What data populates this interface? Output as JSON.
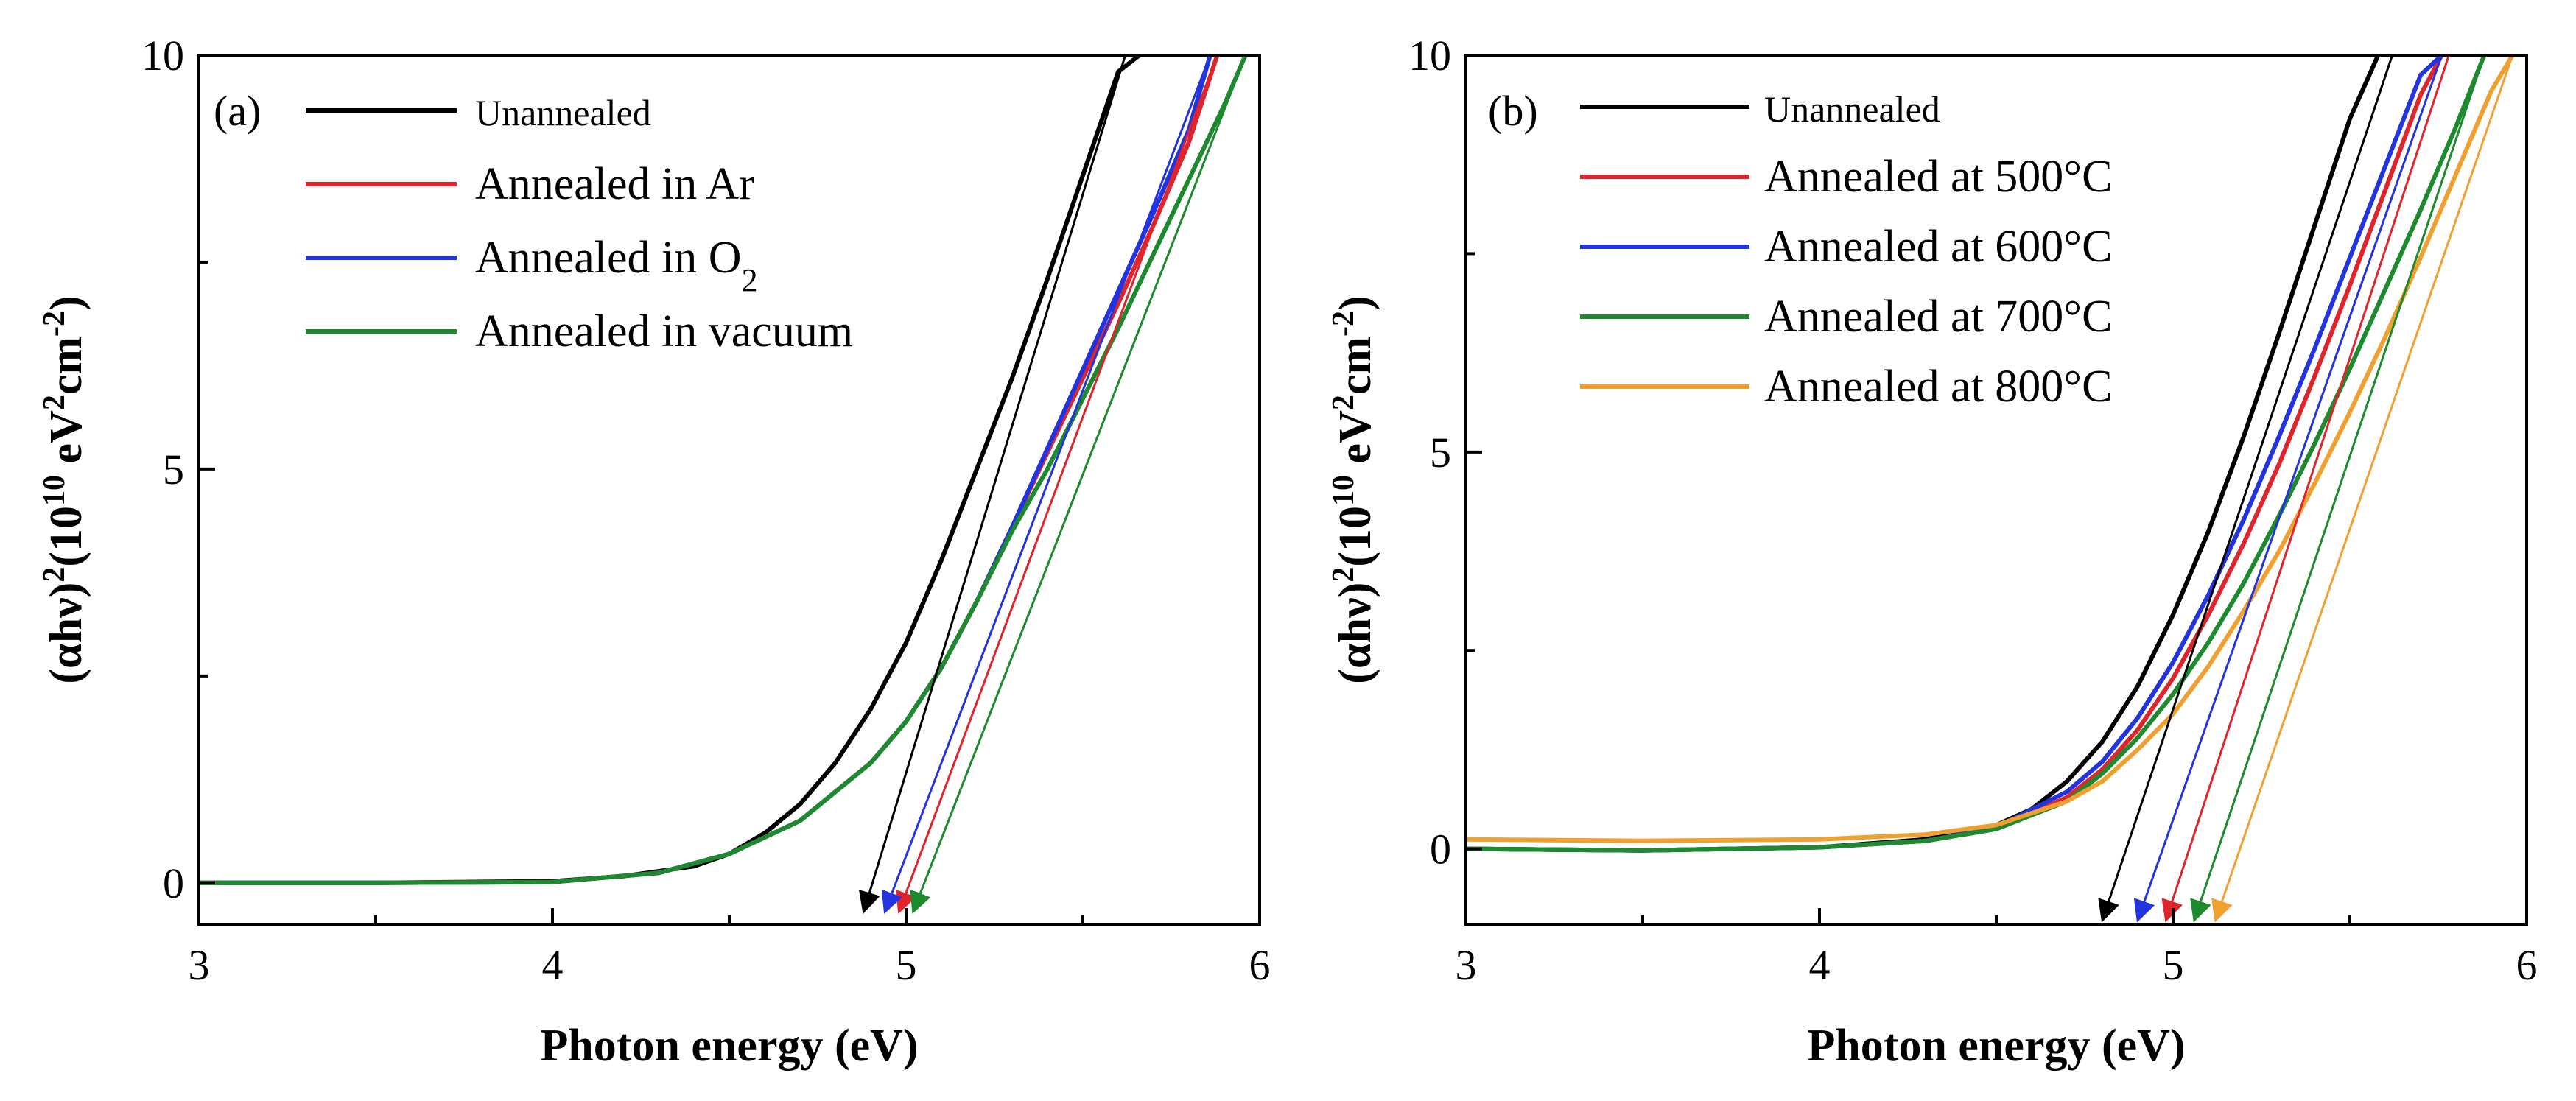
{
  "chart_data": [
    {
      "type": "line",
      "panel_label": "(a)",
      "xlabel": "Photon energy (eV)",
      "ylabel_parts": [
        "(αhν)",
        "2",
        "(10",
        "10",
        " eV",
        "2",
        "cm",
        "-2",
        ")"
      ],
      "xlim": [
        3,
        6
      ],
      "ylim": [
        -0.5,
        10
      ],
      "xticks": [
        3,
        4,
        5,
        6
      ],
      "yticks": [
        0,
        5,
        10
      ],
      "legend_position": "top-left",
      "series": [
        {
          "name": "Unannealed",
          "color": "#000000",
          "x": [
            3.0,
            3.5,
            4.0,
            4.2,
            4.4,
            4.5,
            4.6,
            4.7,
            4.8,
            4.9,
            5.0,
            5.1,
            5.2,
            5.3,
            5.4,
            5.5,
            5.6,
            5.66
          ],
          "y": [
            0.0,
            0.0,
            0.02,
            0.08,
            0.2,
            0.35,
            0.6,
            0.95,
            1.45,
            2.1,
            2.9,
            3.9,
            5.0,
            6.1,
            7.3,
            8.55,
            9.8,
            10.0
          ],
          "tangent": [
            [
              4.88,
              -0.35
            ],
            [
              5.62,
              10.0
            ]
          ],
          "arrow_x": 4.88
        },
        {
          "name": "Annealed in Ar",
          "color": "#e0242b",
          "x": [
            3.0,
            3.5,
            4.0,
            4.3,
            4.5,
            4.7,
            4.9,
            5.0,
            5.1,
            5.2,
            5.3,
            5.4,
            5.5,
            5.6,
            5.7,
            5.8,
            5.88
          ],
          "y": [
            0.0,
            0.0,
            0.01,
            0.12,
            0.35,
            0.75,
            1.45,
            1.95,
            2.6,
            3.4,
            4.3,
            5.2,
            6.1,
            7.0,
            7.95,
            8.95,
            10.0
          ],
          "tangent": [
            [
              4.98,
              -0.35
            ],
            [
              5.88,
              10.0
            ]
          ],
          "arrow_x": 4.98
        },
        {
          "name": "Annealed in O",
          "name_subscript": "2",
          "color": "#2233e0",
          "x": [
            3.0,
            3.5,
            4.0,
            4.3,
            4.5,
            4.7,
            4.9,
            5.0,
            5.1,
            5.2,
            5.3,
            5.4,
            5.5,
            5.6,
            5.7,
            5.8,
            5.86
          ],
          "y": [
            0.0,
            0.0,
            0.01,
            0.12,
            0.35,
            0.75,
            1.45,
            1.95,
            2.6,
            3.4,
            4.3,
            5.25,
            6.2,
            7.15,
            8.1,
            9.1,
            10.0
          ],
          "tangent": [
            [
              4.94,
              -0.35
            ],
            [
              5.86,
              10.0
            ]
          ],
          "arrow_x": 4.94
        },
        {
          "name": "Annealed in vacuum",
          "color": "#1d8a2e",
          "x": [
            3.0,
            3.5,
            4.0,
            4.3,
            4.5,
            4.7,
            4.9,
            5.0,
            5.1,
            5.2,
            5.3,
            5.4,
            5.5,
            5.6,
            5.7,
            5.8,
            5.9,
            5.96
          ],
          "y": [
            0.0,
            0.0,
            0.01,
            0.12,
            0.35,
            0.75,
            1.45,
            1.95,
            2.6,
            3.4,
            4.25,
            5.0,
            5.85,
            6.7,
            7.6,
            8.5,
            9.4,
            10.0
          ],
          "tangent": [
            [
              5.02,
              -0.35
            ],
            [
              5.96,
              10.0
            ]
          ],
          "arrow_x": 5.02
        }
      ]
    },
    {
      "type": "line",
      "panel_label": "(b)",
      "xlabel": "Photon energy (eV)",
      "ylabel_parts": [
        "(αhν)",
        "2",
        "(10",
        "10",
        " eV",
        "2",
        "cm",
        "-2",
        ")"
      ],
      "xlim": [
        3,
        6
      ],
      "ylim": [
        -0.95,
        10
      ],
      "xticks": [
        3,
        4,
        5,
        6
      ],
      "yticks": [
        0,
        5,
        10
      ],
      "legend_position": "top-left",
      "series": [
        {
          "name": "Unannealed",
          "color": "#000000",
          "x": [
            3.0,
            3.5,
            4.0,
            4.3,
            4.5,
            4.6,
            4.7,
            4.8,
            4.9,
            5.0,
            5.1,
            5.2,
            5.3,
            5.4,
            5.5,
            5.58
          ],
          "y": [
            0.0,
            -0.02,
            0.02,
            0.12,
            0.3,
            0.5,
            0.85,
            1.35,
            2.05,
            2.95,
            4.0,
            5.2,
            6.5,
            7.85,
            9.2,
            10.0
          ],
          "tangent": [
            [
              4.8,
              -0.9
            ],
            [
              5.62,
              10.0
            ]
          ],
          "arrow_x": 4.8
        },
        {
          "name": "Annealed at 500°C",
          "color": "#e0242b",
          "x": [
            3.0,
            3.5,
            4.0,
            4.3,
            4.5,
            4.7,
            4.8,
            4.9,
            5.0,
            5.1,
            5.2,
            5.3,
            5.4,
            5.5,
            5.6,
            5.7,
            5.76
          ],
          "y": [
            0.0,
            -0.02,
            0.02,
            0.1,
            0.25,
            0.65,
            1.0,
            1.5,
            2.15,
            2.95,
            3.85,
            4.85,
            5.95,
            7.1,
            8.3,
            9.5,
            10.0
          ],
          "tangent": [
            [
              4.98,
              -0.9
            ],
            [
              5.78,
              10.0
            ]
          ],
          "arrow_x": 4.98
        },
        {
          "name": "Annealed at 600°C",
          "color": "#2233e0",
          "x": [
            3.0,
            3.5,
            4.0,
            4.3,
            4.5,
            4.7,
            4.8,
            4.9,
            5.0,
            5.1,
            5.2,
            5.3,
            5.4,
            5.5,
            5.6,
            5.7,
            5.76
          ],
          "y": [
            0.0,
            -0.02,
            0.02,
            0.1,
            0.27,
            0.72,
            1.1,
            1.65,
            2.35,
            3.2,
            4.15,
            5.2,
            6.3,
            7.45,
            8.6,
            9.75,
            10.0
          ],
          "tangent": [
            [
              4.9,
              -0.9
            ],
            [
              5.76,
              10.0
            ]
          ],
          "arrow_x": 4.9
        },
        {
          "name": "Annealed at 700°C",
          "color": "#1d8a2e",
          "x": [
            3.0,
            3.5,
            4.0,
            4.3,
            4.5,
            4.7,
            4.8,
            4.9,
            5.0,
            5.1,
            5.2,
            5.3,
            5.4,
            5.5,
            5.6,
            5.7,
            5.8,
            5.88
          ],
          "y": [
            0.0,
            -0.02,
            0.02,
            0.1,
            0.25,
            0.6,
            0.95,
            1.4,
            1.95,
            2.6,
            3.35,
            4.2,
            5.1,
            6.05,
            7.05,
            8.05,
            9.1,
            10.0
          ],
          "tangent": [
            [
              5.06,
              -0.9
            ],
            [
              5.88,
              10.0
            ]
          ],
          "arrow_x": 5.06
        },
        {
          "name": "Annealed at 800°C",
          "color": "#f0a030",
          "x": [
            3.0,
            3.5,
            4.0,
            4.3,
            4.5,
            4.7,
            4.8,
            4.9,
            5.0,
            5.1,
            5.2,
            5.3,
            5.4,
            5.5,
            5.6,
            5.7,
            5.8,
            5.9,
            5.96
          ],
          "y": [
            0.12,
            0.1,
            0.12,
            0.18,
            0.3,
            0.6,
            0.85,
            1.25,
            1.7,
            2.3,
            3.0,
            3.75,
            4.6,
            5.5,
            6.45,
            7.45,
            8.5,
            9.55,
            10.0
          ],
          "tangent": [
            [
              5.12,
              -0.9
            ],
            [
              5.96,
              10.0
            ]
          ],
          "arrow_x": 5.12
        }
      ]
    }
  ]
}
